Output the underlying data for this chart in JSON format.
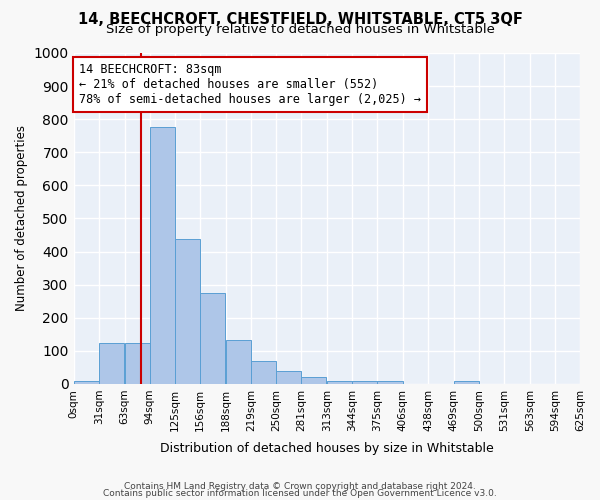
{
  "title": "14, BEECHCROFT, CHESTFIELD, WHITSTABLE, CT5 3QF",
  "subtitle": "Size of property relative to detached houses in Whitstable",
  "xlabel": "Distribution of detached houses by size in Whitstable",
  "ylabel": "Number of detached properties",
  "bin_labels": [
    "0sqm",
    "31sqm",
    "63sqm",
    "94sqm",
    "125sqm",
    "156sqm",
    "188sqm",
    "219sqm",
    "250sqm",
    "281sqm",
    "313sqm",
    "344sqm",
    "375sqm",
    "406sqm",
    "438sqm",
    "469sqm",
    "500sqm",
    "531sqm",
    "563sqm",
    "594sqm",
    "625sqm"
  ],
  "bin_edges": [
    0,
    31,
    63,
    94,
    125,
    156,
    188,
    219,
    250,
    281,
    313,
    344,
    375,
    406,
    438,
    469,
    500,
    531,
    563,
    594,
    625
  ],
  "bar_heights": [
    10,
    125,
    125,
    775,
    438,
    275,
    133,
    70,
    38,
    22,
    10,
    10,
    10,
    0,
    0,
    8,
    0,
    0,
    0,
    0
  ],
  "bar_color": "#aec6e8",
  "bar_edgecolor": "#5a9fd4",
  "bg_color": "#eaf0f8",
  "grid_color": "#ffffff",
  "property_value": 83,
  "vline_color": "#cc0000",
  "annotation_text": "14 BEECHCROFT: 83sqm\n← 21% of detached houses are smaller (552)\n78% of semi-detached houses are larger (2,025) →",
  "annotation_box_color": "#ffffff",
  "annotation_box_edgecolor": "#cc0000",
  "ylim": [
    0,
    1000
  ],
  "yticks": [
    0,
    100,
    200,
    300,
    400,
    500,
    600,
    700,
    800,
    900,
    1000
  ],
  "footer1": "Contains HM Land Registry data © Crown copyright and database right 2024.",
  "footer2": "Contains public sector information licensed under the Open Government Licence v3.0."
}
